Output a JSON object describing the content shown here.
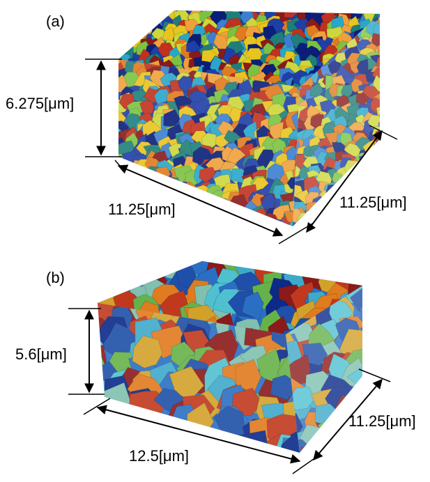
{
  "panels": [
    {
      "label": "(a)",
      "height": "6.275[μm]",
      "length": "11.25[μm]",
      "depth": "11.25[μm]"
    },
    {
      "label": "(b)",
      "height": "5.6[μm]",
      "length": "12.5[μm]",
      "depth": "11.25[μm]"
    }
  ]
}
